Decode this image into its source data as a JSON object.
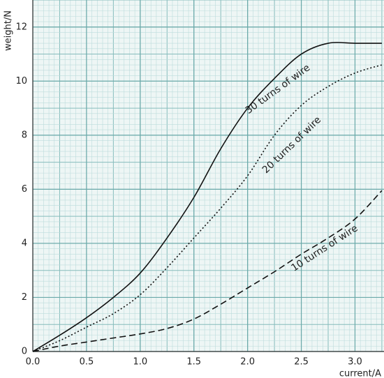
{
  "chart_data": {
    "type": "line",
    "x_label": "current/A",
    "y_label": "weight/N",
    "x": [
      0,
      0.25,
      0.5,
      0.75,
      1.0,
      1.25,
      1.5,
      1.75,
      2.0,
      2.25,
      2.5,
      2.75,
      3.0,
      3.25
    ],
    "series": [
      {
        "name": "30 turns of wire",
        "color": "#111111",
        "dash": "solid",
        "values": [
          0,
          0.6,
          1.25,
          2.0,
          2.9,
          4.2,
          5.7,
          7.5,
          9.0,
          10.1,
          11.0,
          11.4,
          11.4,
          11.4
        ]
      },
      {
        "name": "20 turns of wire",
        "color": "#111111",
        "dash": "dotted",
        "values": [
          0,
          0.4,
          0.9,
          1.4,
          2.1,
          3.1,
          4.2,
          5.3,
          6.5,
          8.0,
          9.1,
          9.8,
          10.3,
          10.6
        ]
      },
      {
        "name": "10 turns of wire",
        "color": "#111111",
        "dash": "dashed",
        "values": [
          0,
          0.2,
          0.35,
          0.5,
          0.65,
          0.85,
          1.2,
          1.75,
          2.35,
          2.95,
          3.6,
          4.2,
          4.9,
          5.95
        ]
      }
    ],
    "xlim": [
      0,
      3.27
    ],
    "ylim": [
      0,
      13
    ],
    "xticks": [
      {
        "value": 0,
        "label": "0.0"
      },
      0.5,
      {
        "value": 1,
        "label": "1.0"
      },
      1.5,
      {
        "value": 2,
        "label": "2.0"
      },
      2.5,
      {
        "value": 3,
        "label": "3.0"
      }
    ],
    "yticks": [
      0,
      2,
      4,
      6,
      8,
      10,
      12
    ],
    "grid": true
  }
}
